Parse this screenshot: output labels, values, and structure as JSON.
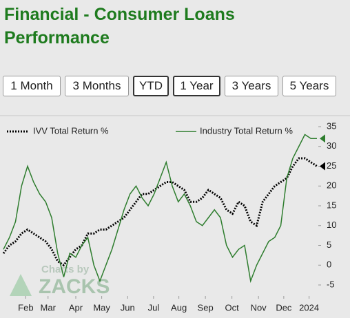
{
  "header": {
    "title": "Financial - Consumer Loans Performance"
  },
  "buttons": [
    "1 Month",
    "3 Months",
    "YTD",
    "1 Year",
    "3 Years",
    "5 Years"
  ],
  "chart_data": {
    "type": "line",
    "x": [
      0,
      1,
      2,
      3,
      4,
      5,
      6,
      7,
      8,
      9,
      10,
      11,
      12,
      13,
      14,
      15,
      16,
      17,
      18,
      19,
      20,
      21,
      22,
      23,
      24,
      25,
      26,
      27,
      28,
      29,
      30,
      31,
      32,
      33,
      34,
      35,
      36,
      37,
      38,
      39,
      40,
      41,
      42,
      43,
      44,
      45,
      46,
      47,
      48,
      49,
      50,
      51,
      52
    ],
    "series": [
      {
        "name": "IVV Total Return %",
        "color": "#000000",
        "dashed": true,
        "values": [
          3,
          5,
          6,
          8,
          9,
          8,
          7,
          6,
          4,
          1,
          0,
          2,
          4,
          5,
          8,
          8,
          9,
          9,
          10,
          11,
          12,
          14,
          16,
          18,
          18,
          19,
          20,
          21,
          21,
          20,
          19,
          16,
          16,
          17,
          19,
          18,
          17,
          14,
          13,
          16,
          15,
          11,
          10,
          16,
          18,
          20,
          21,
          22,
          25,
          27,
          27,
          26,
          25
        ]
      },
      {
        "name": "Industry Total Return %",
        "color": "#2e7d2e",
        "dashed": false,
        "values": [
          4,
          7,
          11,
          20,
          25,
          21,
          18,
          16,
          12,
          3,
          -3,
          3,
          2,
          5,
          7,
          0,
          -4,
          0,
          4,
          9,
          14,
          18,
          20,
          17,
          15,
          18,
          22,
          26,
          20,
          16,
          18,
          15,
          11,
          10,
          12,
          14,
          12,
          5,
          2,
          4,
          5,
          -4,
          0,
          3,
          6,
          7,
          10,
          22,
          27,
          30,
          33,
          32,
          32
        ]
      }
    ],
    "xlim": [
      0,
      52
    ],
    "xticks": [
      {
        "value": 3.7,
        "label": "Feb"
      },
      {
        "value": 7.4,
        "label": "Mar"
      },
      {
        "value": 12,
        "label": "Apr"
      },
      {
        "value": 16.3,
        "label": "May"
      },
      {
        "value": 20.6,
        "label": "Jun"
      },
      {
        "value": 24.9,
        "label": "Jul"
      },
      {
        "value": 29.1,
        "label": "Aug"
      },
      {
        "value": 33.5,
        "label": "Sep"
      },
      {
        "value": 37.9,
        "label": "Oct"
      },
      {
        "value": 42.3,
        "label": "Nov"
      },
      {
        "value": 46.5,
        "label": "Dec"
      },
      {
        "value": 50.7,
        "label": "2024"
      }
    ],
    "ylim": [
      -5,
      35
    ],
    "yticks": [
      -5,
      0,
      5,
      10,
      15,
      20,
      25,
      30,
      35
    ],
    "watermark": {
      "line1": "Charts by",
      "line2": "ZACKS"
    }
  }
}
